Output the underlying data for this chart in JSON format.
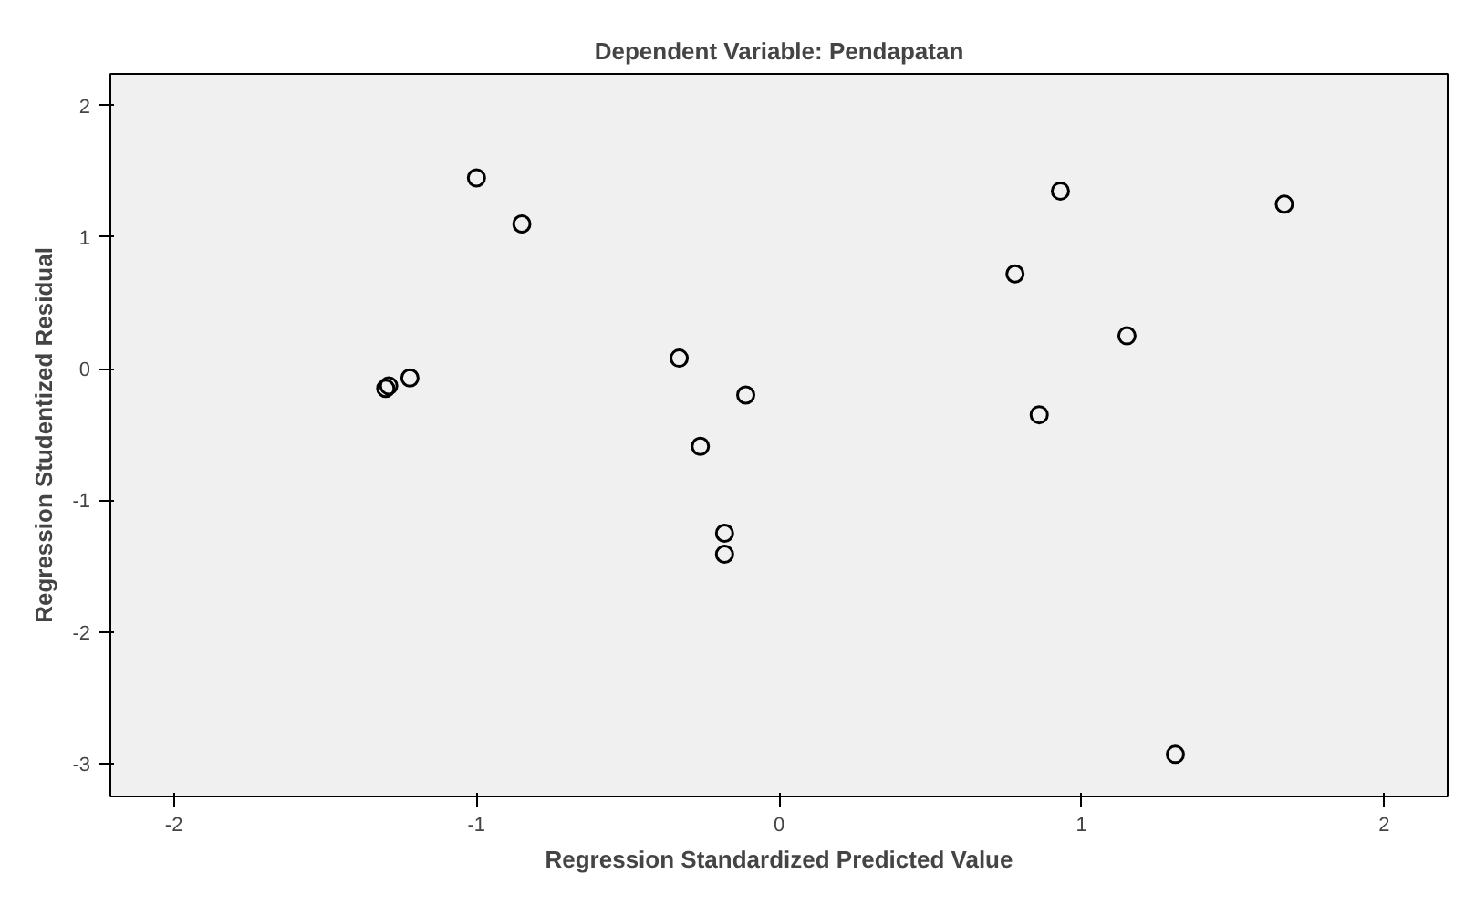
{
  "chart_data": {
    "type": "scatter",
    "title": "Dependent Variable: Pendapatan",
    "xlabel": "Regression Standardized Predicted Value",
    "ylabel": "Regression Studentized Residual",
    "x": [
      -1.3,
      -1.29,
      -1.22,
      -1.0,
      -0.85,
      -0.33,
      -0.26,
      -0.11,
      -0.18,
      -0.18,
      0.78,
      0.93,
      0.86,
      1.15,
      1.67,
      1.31
    ],
    "series": [
      {
        "color": "#000000",
        "values": [
          -0.15,
          -0.13,
          -0.07,
          1.45,
          1.1,
          0.08,
          -0.59,
          -0.2,
          -1.25,
          -1.41,
          0.72,
          1.35,
          -0.35,
          0.25,
          1.25,
          -2.93
        ]
      }
    ],
    "xlim": [
      -2.21,
      2.21
    ],
    "ylim": [
      -3.25,
      2.24
    ],
    "xticks": [
      -2,
      -1,
      0,
      1,
      2
    ],
    "yticks": [
      -3,
      -2,
      -1,
      0,
      1,
      2
    ],
    "marker": "circle",
    "grid": false
  }
}
